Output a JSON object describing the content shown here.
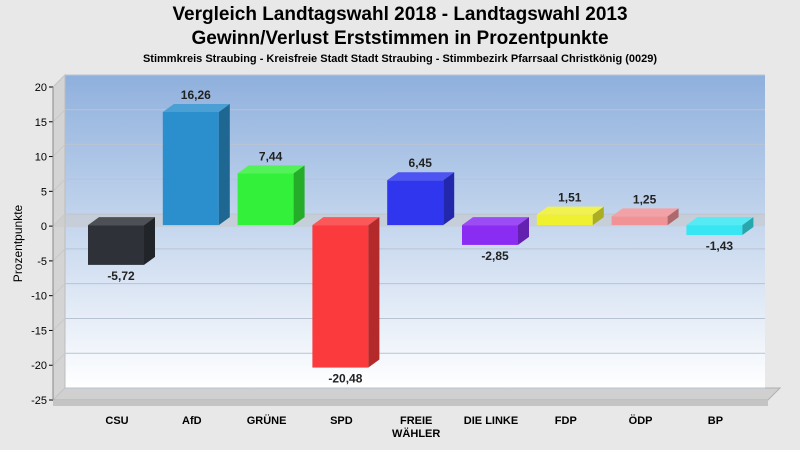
{
  "chart_data": {
    "type": "bar",
    "title": "Vergleich Landtagswahl 2018 - Landtagswahl 2013",
    "subtitle": "Gewinn/Verlust Erststimmen in Prozentpunkte",
    "subtitle2": "Stimmkreis Straubing - Kreisfreie Stadt Stadt Straubing - Stimmbezirk Pfarrsaal Christkönig (0029)",
    "ylabel": "Prozentpunkte",
    "xlabel": "",
    "ylim": [
      -25,
      20
    ],
    "yticks": [
      20,
      15,
      10,
      5,
      0,
      -5,
      -10,
      -15,
      -20,
      -25
    ],
    "grid": true,
    "categories": [
      "CSU",
      "AfD",
      "GRÜNE",
      "SPD",
      "FREIE WÄHLER",
      "DIE LINKE",
      "FDP",
      "ÖDP",
      "BP"
    ],
    "category_lines": [
      [
        "CSU"
      ],
      [
        "AfD"
      ],
      [
        "GRÜNE"
      ],
      [
        "SPD"
      ],
      [
        "FREIE",
        "WÄHLER"
      ],
      [
        "DIE LINKE"
      ],
      [
        "FDP"
      ],
      [
        "ÖDP"
      ],
      [
        "BP"
      ]
    ],
    "values": [
      -5.72,
      16.26,
      7.44,
      -20.48,
      6.45,
      -2.85,
      1.51,
      1.25,
      -1.43
    ],
    "value_labels": [
      "-5,72",
      "16,26",
      "7,44",
      "-20,48",
      "6,45",
      "-2,85",
      "1,51",
      "1,25",
      "-1,43"
    ],
    "colors": [
      "#2e3238",
      "#2a8fcc",
      "#33f03a",
      "#fa3a3c",
      "#2f36ee",
      "#8b2cf2",
      "#eef030",
      "#f09296",
      "#37e6f2"
    ]
  }
}
